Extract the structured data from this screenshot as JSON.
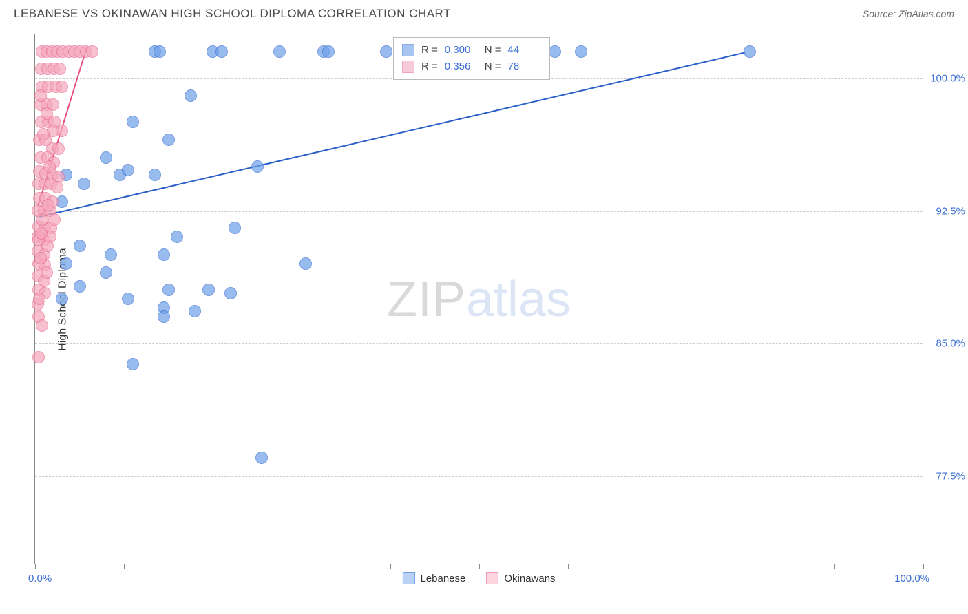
{
  "title": "LEBANESE VS OKINAWAN HIGH SCHOOL DIPLOMA CORRELATION CHART",
  "source": "Source: ZipAtlas.com",
  "yaxis_title": "High School Diploma",
  "watermark": {
    "zip": "ZIP",
    "atlas": "atlas"
  },
  "chart": {
    "type": "scatter",
    "background_color": "#ffffff",
    "grid_color": "#cccccc",
    "axis_color": "#888888",
    "label_color": "#3b6fd4",
    "xlim": [
      0,
      100
    ],
    "ylim": [
      72.5,
      102.5
    ],
    "ytick_values": [
      77.5,
      85.0,
      92.5,
      100.0
    ],
    "ytick_labels": [
      "77.5%",
      "85.0%",
      "92.5%",
      "100.0%"
    ],
    "xtick_positions": [
      0,
      10,
      20,
      30,
      40,
      50,
      60,
      70,
      80,
      90,
      100
    ],
    "xaxis_label_left": "0.0%",
    "xaxis_label_right": "100.0%",
    "marker_radius": 9,
    "marker_fill_opacity": 0.35,
    "marker_stroke_width": 1.2,
    "series": [
      {
        "name": "Lebanese",
        "color": "#6fa0e8",
        "stroke": "#3b6fd4",
        "R": "0.300",
        "N": "44",
        "trend": {
          "x1": 0.5,
          "y1": 92.2,
          "x2": 80.0,
          "y2": 101.5,
          "color": "#2a5fc7",
          "width": 2
        },
        "points": [
          [
            13.5,
            101.5
          ],
          [
            14.0,
            101.5
          ],
          [
            20.0,
            101.5
          ],
          [
            21.0,
            101.5
          ],
          [
            27.5,
            101.5
          ],
          [
            32.5,
            101.5
          ],
          [
            33.0,
            101.5
          ],
          [
            39.5,
            101.5
          ],
          [
            44.5,
            101.5
          ],
          [
            48.0,
            101.5
          ],
          [
            52.5,
            101.5
          ],
          [
            58.5,
            101.5
          ],
          [
            61.5,
            101.5
          ],
          [
            80.5,
            101.5
          ],
          [
            17.5,
            99.0
          ],
          [
            25.0,
            95.0
          ],
          [
            11.0,
            97.5
          ],
          [
            15.0,
            96.5
          ],
          [
            8.0,
            95.5
          ],
          [
            9.5,
            94.5
          ],
          [
            3.5,
            94.5
          ],
          [
            5.5,
            94.0
          ],
          [
            3.0,
            93.0
          ],
          [
            10.5,
            94.8
          ],
          [
            13.5,
            94.5
          ],
          [
            5.0,
            90.5
          ],
          [
            8.5,
            90.0
          ],
          [
            3.5,
            89.5
          ],
          [
            8.0,
            89.0
          ],
          [
            14.5,
            90.0
          ],
          [
            5.0,
            88.2
          ],
          [
            16.0,
            91.0
          ],
          [
            22.5,
            91.5
          ],
          [
            30.5,
            89.5
          ],
          [
            3.0,
            87.5
          ],
          [
            10.5,
            87.5
          ],
          [
            14.5,
            87.0
          ],
          [
            18.0,
            86.8
          ],
          [
            11.0,
            83.8
          ],
          [
            14.5,
            86.5
          ],
          [
            15.0,
            88.0
          ],
          [
            19.5,
            88.0
          ],
          [
            22.0,
            87.8
          ],
          [
            25.5,
            78.5
          ]
        ]
      },
      {
        "name": "Okinawans",
        "color": "#f5a7bd",
        "stroke": "#e86f93",
        "R": "0.356",
        "N": "78",
        "trend": {
          "x1": 0.3,
          "y1": 92.8,
          "x2": 5.8,
          "y2": 101.8,
          "color": "#e64f82",
          "width": 2
        },
        "points": [
          [
            0.8,
            101.5
          ],
          [
            1.3,
            101.5
          ],
          [
            1.9,
            101.5
          ],
          [
            2.5,
            101.5
          ],
          [
            3.1,
            101.5
          ],
          [
            3.8,
            101.5
          ],
          [
            4.4,
            101.5
          ],
          [
            5.0,
            101.5
          ],
          [
            5.7,
            101.5
          ],
          [
            6.4,
            101.5
          ],
          [
            0.7,
            100.5
          ],
          [
            1.4,
            100.5
          ],
          [
            2.1,
            100.5
          ],
          [
            2.8,
            100.5
          ],
          [
            0.8,
            99.5
          ],
          [
            1.5,
            99.5
          ],
          [
            2.3,
            99.5
          ],
          [
            3.0,
            99.5
          ],
          [
            0.6,
            98.5
          ],
          [
            1.3,
            98.5
          ],
          [
            2.0,
            98.5
          ],
          [
            0.7,
            97.5
          ],
          [
            1.5,
            97.5
          ],
          [
            2.2,
            97.5
          ],
          [
            3.0,
            97.0
          ],
          [
            0.5,
            96.5
          ],
          [
            1.2,
            96.5
          ],
          [
            1.9,
            96.0
          ],
          [
            2.6,
            96.0
          ],
          [
            0.6,
            95.5
          ],
          [
            1.4,
            95.5
          ],
          [
            2.1,
            95.2
          ],
          [
            0.5,
            94.7
          ],
          [
            1.2,
            94.6
          ],
          [
            1.9,
            94.5
          ],
          [
            2.6,
            94.4
          ],
          [
            0.4,
            94.0
          ],
          [
            1.1,
            94.0
          ],
          [
            1.8,
            94.0
          ],
          [
            2.5,
            93.8
          ],
          [
            0.5,
            93.2
          ],
          [
            1.2,
            93.2
          ],
          [
            1.9,
            93.0
          ],
          [
            0.3,
            92.5
          ],
          [
            1.0,
            92.5
          ],
          [
            1.7,
            92.5
          ],
          [
            0.4,
            91.6
          ],
          [
            1.1,
            91.5
          ],
          [
            1.8,
            91.5
          ],
          [
            0.3,
            91.0
          ],
          [
            1.0,
            90.8
          ],
          [
            1.7,
            91.0
          ],
          [
            0.4,
            90.8
          ],
          [
            0.3,
            90.2
          ],
          [
            1.0,
            90.0
          ],
          [
            0.4,
            89.5
          ],
          [
            1.1,
            89.4
          ],
          [
            0.3,
            88.8
          ],
          [
            1.0,
            88.5
          ],
          [
            0.4,
            88.0
          ],
          [
            1.1,
            87.8
          ],
          [
            0.3,
            87.2
          ],
          [
            0.4,
            86.5
          ],
          [
            0.4,
            84.2
          ],
          [
            0.6,
            99.0
          ],
          [
            1.3,
            98.0
          ],
          [
            2.0,
            97.0
          ],
          [
            0.9,
            96.8
          ],
          [
            1.6,
            95.0
          ],
          [
            0.8,
            92.0
          ],
          [
            1.5,
            92.8
          ],
          [
            2.2,
            92.0
          ],
          [
            0.7,
            91.2
          ],
          [
            1.4,
            90.5
          ],
          [
            0.6,
            89.8
          ],
          [
            1.3,
            89.0
          ],
          [
            0.5,
            87.5
          ],
          [
            0.8,
            86.0
          ]
        ]
      }
    ],
    "legend_stats": {
      "R_label": "R  =",
      "N_label": "N  ="
    },
    "bottom_legend": [
      {
        "label": "Lebanese",
        "fill": "#b8d1f5",
        "stroke": "#6fa0e8"
      },
      {
        "label": "Okinawans",
        "fill": "#fbd4df",
        "stroke": "#f098b3"
      }
    ]
  }
}
